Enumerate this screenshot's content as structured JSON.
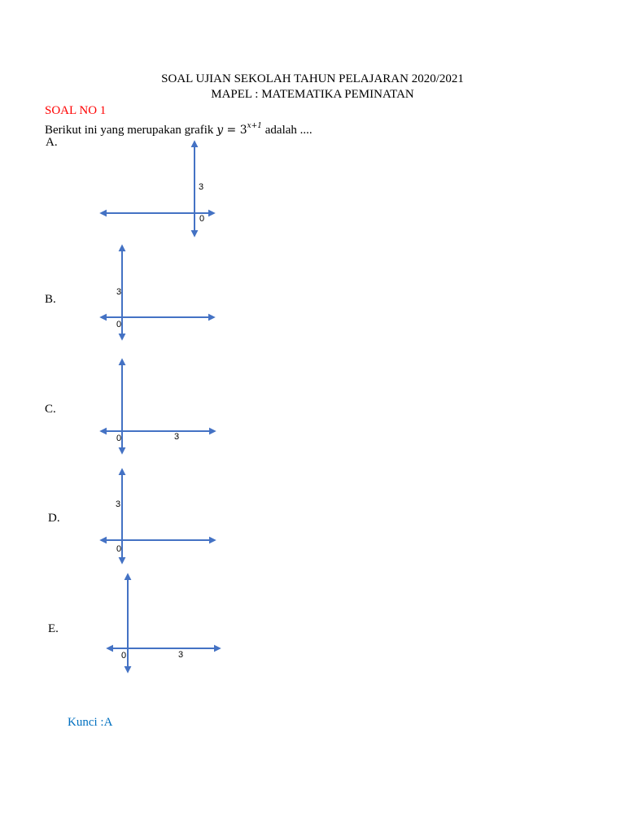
{
  "header": {
    "line1": "SOAL UJIAN SEKOLAH TAHUN PELAJARAN 2020/2021",
    "line2": "MAPEL : MATEMATIKA PEMINATAN"
  },
  "question": {
    "number": "SOAL NO 1",
    "text_before": "Berikut ini yang merupakan grafik ",
    "formula_y": "y",
    "formula_eq": " = 3",
    "formula_exp": "x+1",
    "text_after": " adalah ...."
  },
  "options": [
    {
      "letter": "A.",
      "labels": [
        "3",
        "0"
      ]
    },
    {
      "letter": "B.",
      "labels": [
        "3",
        "0"
      ]
    },
    {
      "letter": "C.",
      "labels": [
        "0",
        "3"
      ]
    },
    {
      "letter": "D.",
      "labels": [
        "3",
        "0"
      ]
    },
    {
      "letter": "E.",
      "labels": [
        "0",
        "3"
      ]
    }
  ],
  "answer_key": "Kunci :A",
  "colors": {
    "axis": "#4472c4",
    "question_number": "#ff0000",
    "answer_key": "#0070c0"
  }
}
